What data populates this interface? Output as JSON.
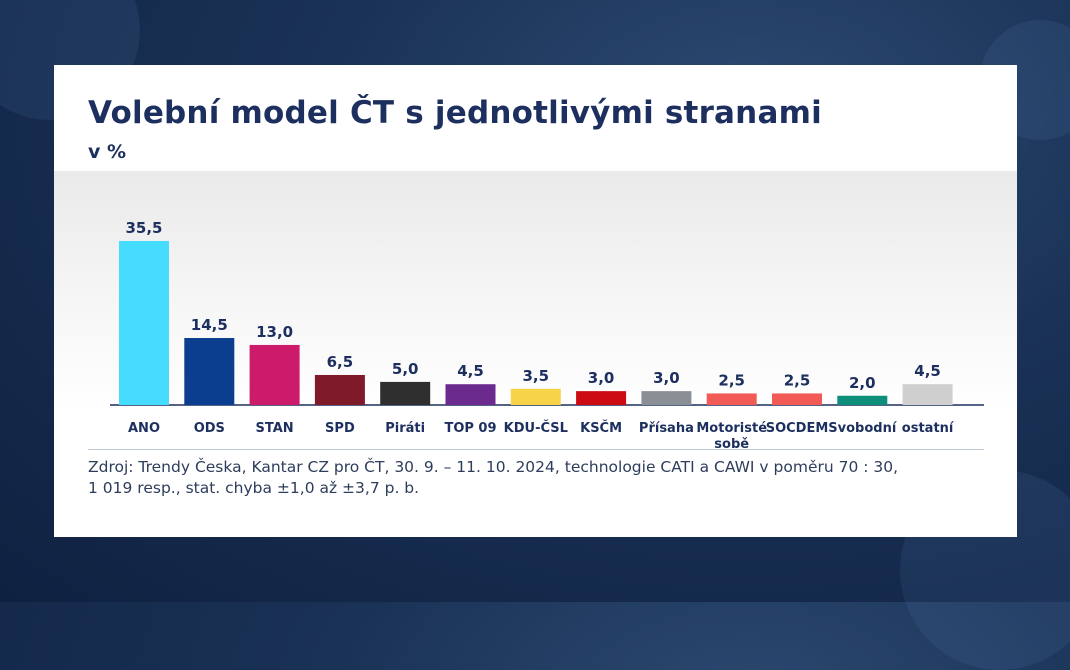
{
  "chart_data": {
    "type": "bar",
    "title": "Volební model ČT s jednotlivými stranami",
    "subtitle": "v %",
    "categories": [
      "ANO",
      "ODS",
      "STAN",
      "SPD",
      "Piráti",
      "TOP 09",
      "KDU-ČSL",
      "KSČM",
      "Přísaha",
      "Motoristé sobě",
      "SOCDEM",
      "Svobodní",
      "ostatní"
    ],
    "values": [
      35.5,
      14.5,
      13.0,
      6.5,
      5.0,
      4.5,
      3.5,
      3.0,
      3.0,
      2.5,
      2.5,
      2.0,
      4.5
    ],
    "value_labels": [
      "35,5",
      "14,5",
      "13,0",
      "6,5",
      "5,0",
      "4,5",
      "3,5",
      "3,0",
      "3,0",
      "2,5",
      "2,5",
      "2,0",
      "4,5"
    ],
    "category_labels": [
      [
        "ANO"
      ],
      [
        "ODS"
      ],
      [
        "STAN"
      ],
      [
        "SPD"
      ],
      [
        "Piráti"
      ],
      [
        "TOP 09"
      ],
      [
        "KDU-ČSL"
      ],
      [
        "KSČM"
      ],
      [
        "Přísaha"
      ],
      [
        "Motoristé",
        "sobě"
      ],
      [
        "SOCDEM"
      ],
      [
        "Svobodní"
      ],
      [
        "ostatní"
      ]
    ],
    "colors": [
      "#45dcff",
      "#0b3e8f",
      "#cc1b6a",
      "#7e1a2a",
      "#2f2f2f",
      "#6b2a8e",
      "#f7d34a",
      "#cc0a12",
      "#8a8f96",
      "#f25a55",
      "#f25a55",
      "#0e8f7c",
      "#cfcfcf"
    ],
    "ylim": [
      0,
      35.5
    ],
    "grid": false,
    "legend": "none"
  },
  "source": {
    "line1": "Zdroj: Trendy Česka, Kantar CZ pro ČT, 30. 9. – 11. 10. 2024, technologie CATI a CAWI v poměru 70 : 30,",
    "line2": "1 019 resp., stat. chyba ±1,0 až ±3,7 p. b."
  },
  "colors": {
    "title": "#1c2f5e",
    "background": "#1a3256"
  }
}
